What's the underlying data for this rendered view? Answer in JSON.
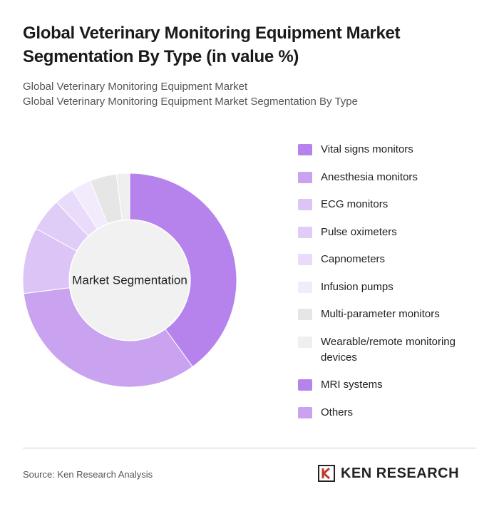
{
  "chart_data": {
    "type": "donut",
    "title": "Global Veterinary Monitoring Equipment Market Segmentation By Type (in value %)",
    "subtitle": [
      "Global Veterinary Monitoring Equipment Market",
      "Global Veterinary Monitoring Equipment Market Segmentation By Type"
    ],
    "center_label": "Market Segmentation",
    "categories": [
      "Vital signs monitors",
      "Anesthesia monitors",
      "ECG monitors",
      "Pulse oximeters",
      "Capnometers",
      "Infusion pumps",
      "Multi-parameter monitors",
      "Wearable/remote monitoring devices",
      "MRI systems",
      "Others"
    ],
    "values": [
      40,
      33,
      10,
      5,
      3,
      3,
      4,
      2,
      0,
      0
    ],
    "colors": [
      "#b682ec",
      "#c9a2f0",
      "#dcc5f6",
      "#e0cdf7",
      "#e9dcfa",
      "#f2ebfb",
      "#e6e6e6",
      "#efefef",
      "#b682ec",
      "#c9a2f0"
    ],
    "source": "Source: Ken Research Analysis",
    "brand": "KEN RESEARCH"
  }
}
